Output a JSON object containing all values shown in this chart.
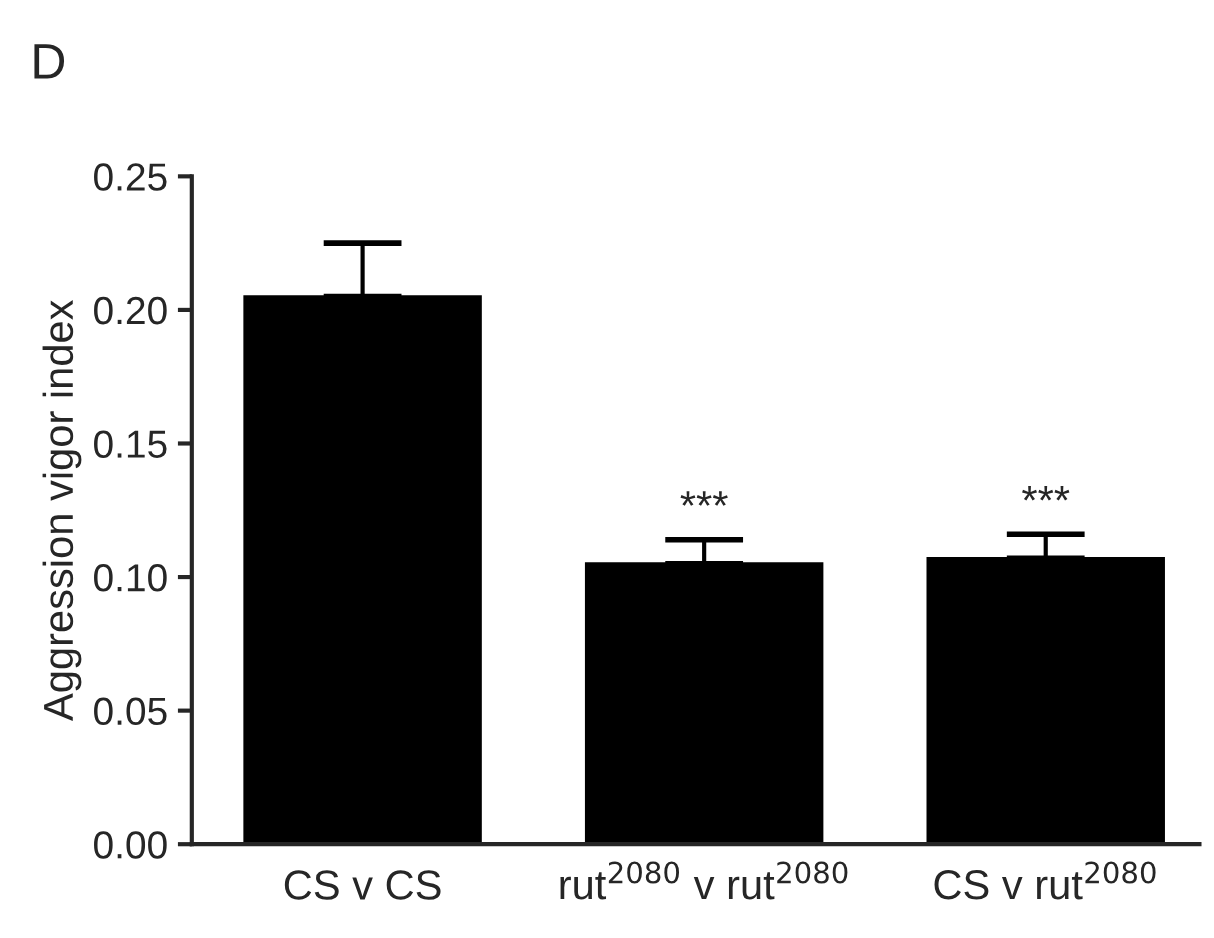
{
  "chart_data": {
    "type": "bar",
    "title": "D",
    "ylabel": "Aggression vigor index",
    "categories": [
      "CS v CS",
      "rut$^{2080}$ v rut$^{2080}$",
      "CS v rut$^{2080}$"
    ],
    "values": [
      0.205,
      0.105,
      0.107
    ],
    "errors": [
      [
        0.205,
        0.225
      ],
      [
        0.105,
        0.114
      ],
      [
        0.107,
        0.116
      ]
    ],
    "color": "#000000",
    "ylim": [
      0,
      0.25
    ],
    "yticks": [
      {
        "value": 0,
        "label": "0.00"
      },
      {
        "value": 0.05,
        "label": "0.05"
      },
      {
        "value": 0.1,
        "label": "0.10"
      },
      {
        "value": 0.15,
        "label": "0.15"
      },
      {
        "value": 0.2,
        "label": "0.20"
      },
      {
        "value": 0.25,
        "label": "0.25"
      }
    ],
    "annotations": [
      {
        "text": "***",
        "x": "rut$^{2080}$ v rut$^{2080}$",
        "y": 0.114
      },
      {
        "text": "***",
        "x": "CS v rut$^{2080}$",
        "y": 0.116
      }
    ],
    "grid": false,
    "legend": false
  }
}
